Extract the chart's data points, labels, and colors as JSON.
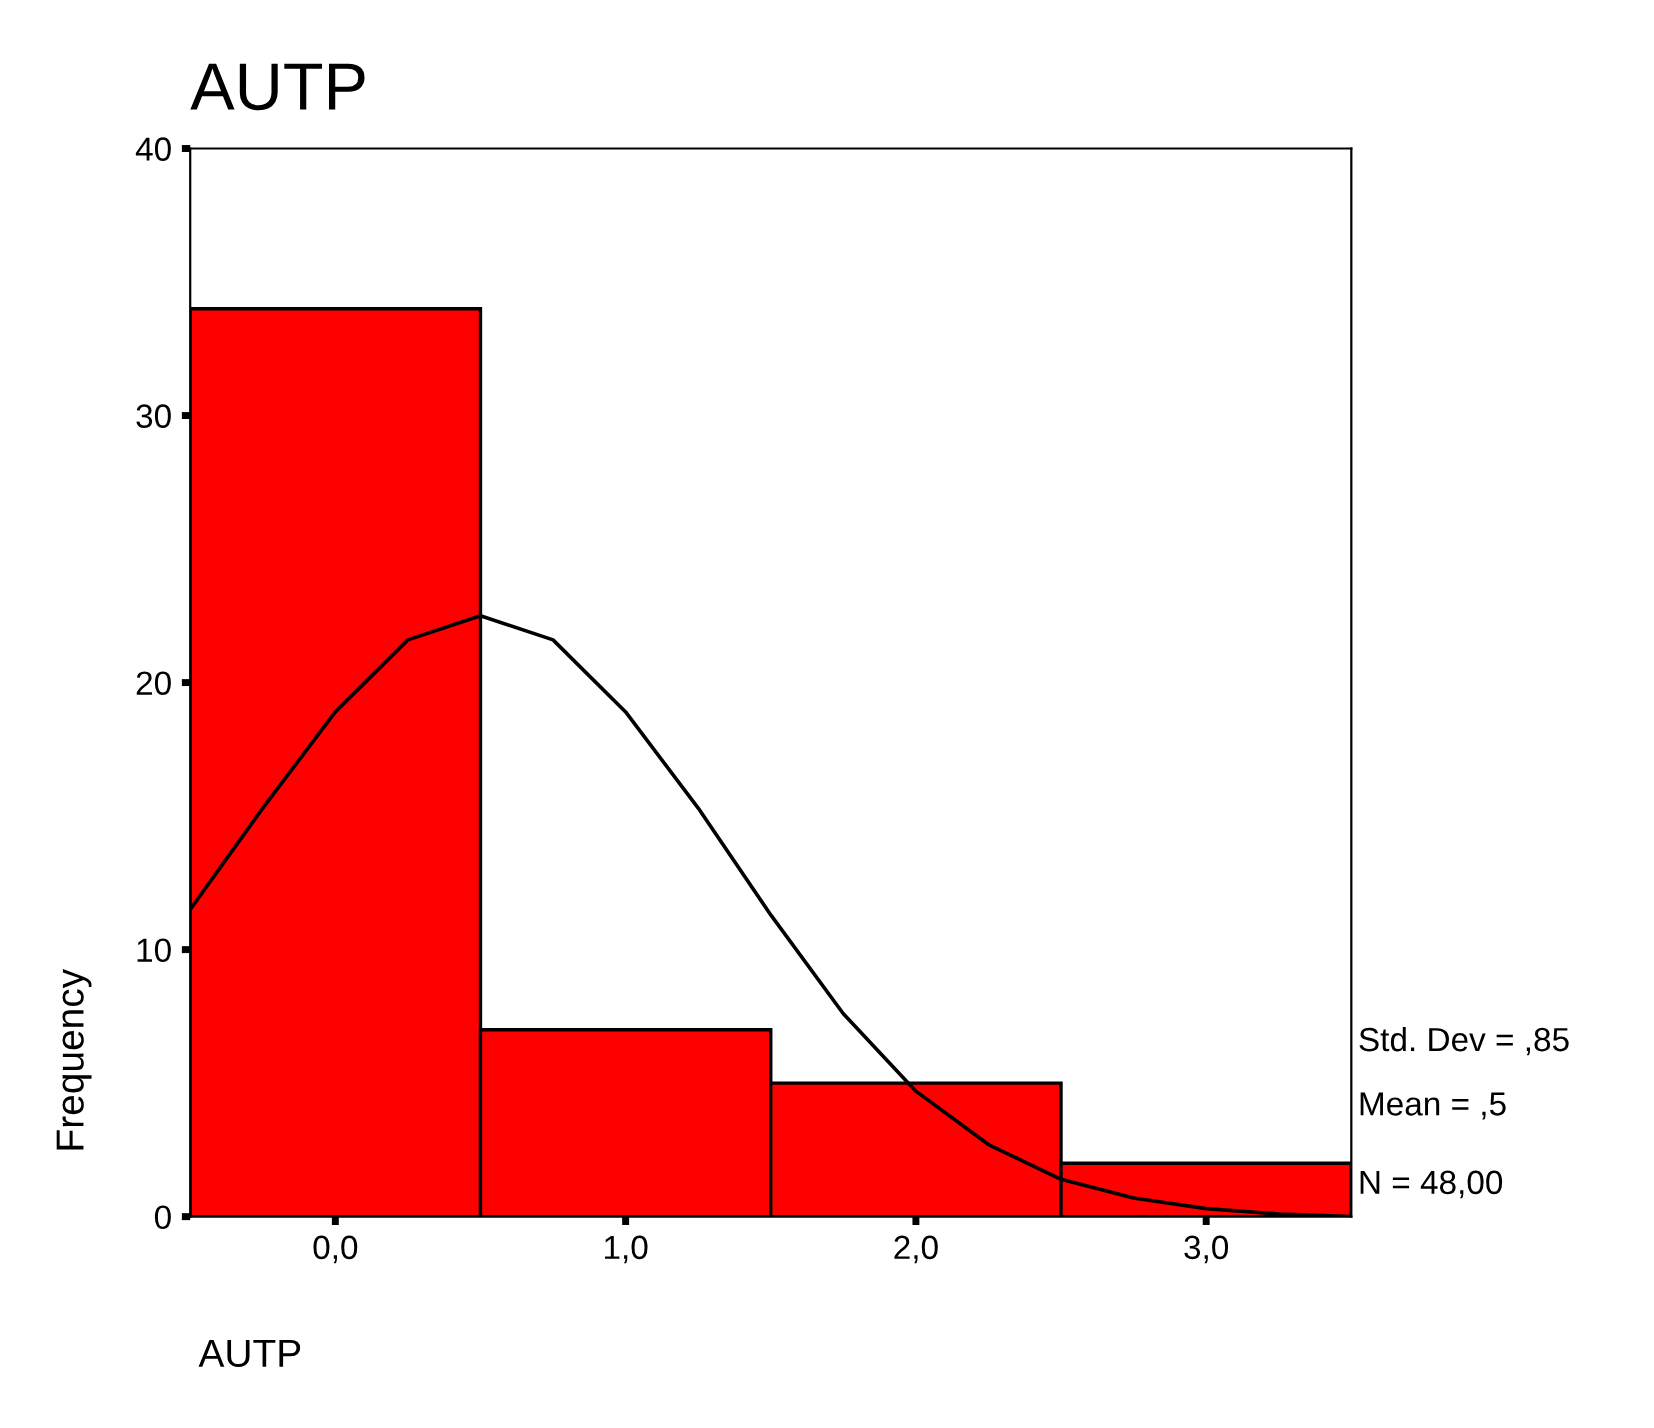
{
  "chart_data": {
    "type": "histogram",
    "title": "AUTP",
    "xlabel": "AUTP",
    "ylabel": "Frequency",
    "bins": [
      -0.5,
      0.5,
      1.5,
      2.5,
      3.5
    ],
    "values": [
      34,
      7,
      5,
      2
    ],
    "color": "#ff0000",
    "series": [
      {
        "type": "line",
        "color": "#000000",
        "x": [
          -0.5,
          -0.25,
          0,
          0.25,
          0.5,
          0.75,
          1.0,
          1.25,
          1.5,
          1.75,
          2.0,
          2.25,
          2.5,
          2.75,
          3.0,
          3.25,
          3.5
        ],
        "values": [
          11.5,
          15.3,
          18.9,
          21.6,
          22.5,
          21.6,
          18.9,
          15.3,
          11.3,
          7.6,
          4.7,
          2.7,
          1.4,
          0.7,
          0.3,
          0.1,
          0.0
        ]
      }
    ],
    "xlim": [
      -0.5,
      3.5
    ],
    "ylim": [
      0,
      40
    ],
    "xticks": [
      {
        "value": 0,
        "label": "0,0"
      },
      {
        "value": 1,
        "label": "1,0"
      },
      {
        "value": 2,
        "label": "2,0"
      },
      {
        "value": 3,
        "label": "3,0"
      }
    ],
    "yticks": [
      0,
      10,
      20,
      30,
      40
    ],
    "annotations": [
      "Std. Dev = ,85",
      "Mean = ,5",
      "N = 48,00"
    ],
    "grid": false,
    "legend": false
  }
}
